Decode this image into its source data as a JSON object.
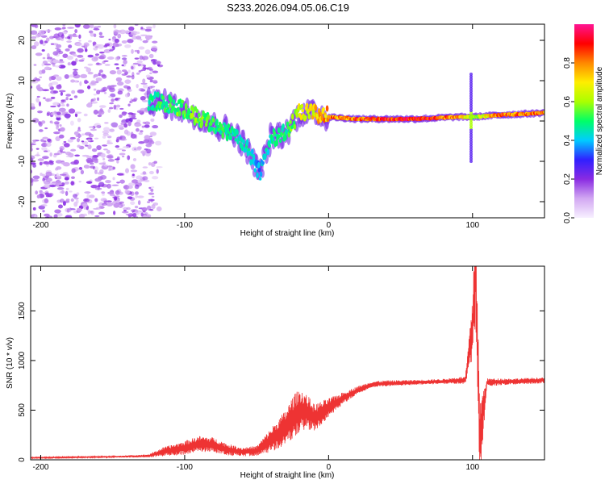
{
  "title": "S233.2026.094.05.06.C19",
  "chart_data": [
    {
      "type": "heatmap",
      "xlabel": "Height of straight line (km)",
      "ylabel": "Frequency (Hz)",
      "xlim": [
        -207,
        150
      ],
      "ylim": [
        -24,
        24
      ],
      "xticks": [
        -200,
        -100,
        0,
        100
      ],
      "xtick_labels": [
        "-200",
        "-100",
        "0",
        "100"
      ],
      "yticks": [
        -20,
        -10,
        0,
        10,
        20
      ],
      "ytick_labels": [
        "-20",
        "-10",
        "0",
        "10",
        "20"
      ],
      "colorbar": {
        "label": "Normalized spectral amplitude",
        "range": [
          0,
          1
        ],
        "ticks": [
          0.0,
          0.2,
          0.4,
          0.6,
          0.8
        ],
        "tick_labels": [
          "0.0",
          "0.2",
          "0.4",
          "0.6",
          "0.8"
        ],
        "colormap": [
          "#f7f0ff",
          "#d2a8f2",
          "#8a2be2",
          "#3020ff",
          "#00ccff",
          "#00ff66",
          "#aaff00",
          "#ffee00",
          "#ff8800",
          "#ff0000",
          "#ff1493"
        ]
      },
      "ridge": [
        {
          "x": -125,
          "f": 5,
          "amp": 0.5
        },
        {
          "x": -110,
          "f": 4,
          "amp": 0.55
        },
        {
          "x": -95,
          "f": 2,
          "amp": 0.6
        },
        {
          "x": -80,
          "f": -1,
          "amp": 0.55
        },
        {
          "x": -65,
          "f": -3,
          "amp": 0.5
        },
        {
          "x": -55,
          "f": -8,
          "amp": 0.45
        },
        {
          "x": -48,
          "f": -13,
          "amp": 0.4
        },
        {
          "x": -40,
          "f": -4,
          "amp": 0.5
        },
        {
          "x": -30,
          "f": -3,
          "amp": 0.5
        },
        {
          "x": -20,
          "f": 2,
          "amp": 0.7
        },
        {
          "x": -10,
          "f": 2,
          "amp": 0.75
        },
        {
          "x": 0,
          "f": 1,
          "amp": 0.85
        },
        {
          "x": 20,
          "f": 0.5,
          "amp": 0.9
        },
        {
          "x": 60,
          "f": 0.5,
          "amp": 0.95
        },
        {
          "x": 90,
          "f": 1,
          "amp": 0.85
        },
        {
          "x": 100,
          "f": 1,
          "amp": 0.6
        },
        {
          "x": 120,
          "f": 1.5,
          "amp": 0.9
        },
        {
          "x": 150,
          "f": 2,
          "amp": 0.85
        }
      ]
    },
    {
      "type": "line",
      "xlabel": "Height of straight line (km)",
      "ylabel": "SNR (10 * v/v)",
      "xlim": [
        -207,
        150
      ],
      "ylim": [
        0,
        1950
      ],
      "xticks": [
        -200,
        -100,
        0,
        100
      ],
      "xtick_labels": [
        "-200",
        "-100",
        "0",
        "100"
      ],
      "yticks": [
        0,
        500,
        1000,
        1500
      ],
      "ytick_labels": [
        "0",
        "500",
        "1000",
        "1500"
      ],
      "series": [
        {
          "name": "SNR",
          "color": "#ee3333",
          "x": [
            -207,
            -180,
            -150,
            -125,
            -115,
            -100,
            -90,
            -80,
            -70,
            -60,
            -50,
            -40,
            -30,
            -25,
            -20,
            -15,
            -10,
            -5,
            0,
            10,
            20,
            30,
            40,
            60,
            80,
            95,
            100,
            102,
            105,
            110,
            130,
            150
          ],
          "y": [
            20,
            25,
            30,
            40,
            80,
            120,
            160,
            150,
            100,
            80,
            90,
            200,
            320,
            420,
            500,
            480,
            420,
            470,
            520,
            620,
            700,
            760,
            770,
            780,
            790,
            800,
            1300,
            1950,
            200,
            780,
            790,
            800
          ],
          "noise": [
            5,
            6,
            8,
            15,
            45,
            70,
            80,
            75,
            60,
            45,
            50,
            120,
            180,
            220,
            220,
            180,
            140,
            120,
            100,
            60,
            40,
            30,
            30,
            25,
            25,
            40,
            300,
            600,
            400,
            40,
            30,
            30
          ]
        }
      ]
    }
  ]
}
